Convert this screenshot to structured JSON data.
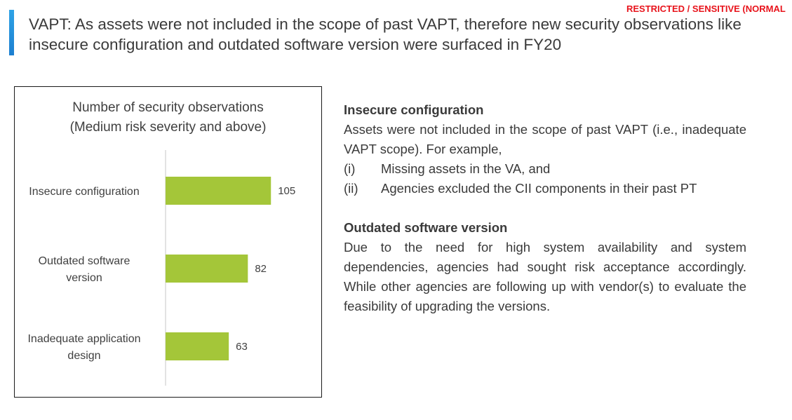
{
  "classification": "RESTRICTED / SENSITIVE (NORMAL",
  "slide_title": "VAPT: As assets were not included in the scope of past VAPT, therefore new security observations like insecure configuration and outdated software version were surfaced in FY20",
  "colors": {
    "accent": "#2a95de",
    "bar": "#a4c639",
    "classification": "#e8141c"
  },
  "chart_data": {
    "type": "bar",
    "orientation": "horizontal",
    "title": "Number of security observations",
    "subtitle": "(Medium risk severity and above)",
    "categories": [
      [
        "Insecure configuration"
      ],
      [
        "Outdated software",
        "version"
      ],
      [
        "Inadequate application",
        "design"
      ]
    ],
    "values": [
      105,
      82,
      63
    ],
    "xlim": [
      0,
      130
    ],
    "grid": false,
    "legend": "none",
    "data_labels": true
  },
  "sections": [
    {
      "heading": "Insecure configuration",
      "body": "Assets were not included in the scope of past VAPT (i.e., inadequate VAPT scope). For example,",
      "items": [
        {
          "marker": "(i)",
          "text": "Missing assets in the VA, and"
        },
        {
          "marker": "(ii)",
          "text": "Agencies excluded the CII components in their past PT"
        }
      ]
    },
    {
      "heading": "Outdated software version",
      "body": "Due to the need for high system availability and system dependencies, agencies had sought risk acceptance accordingly.  While other agencies are following up with vendor(s) to evaluate the feasibility of upgrading the versions.",
      "items": []
    }
  ]
}
